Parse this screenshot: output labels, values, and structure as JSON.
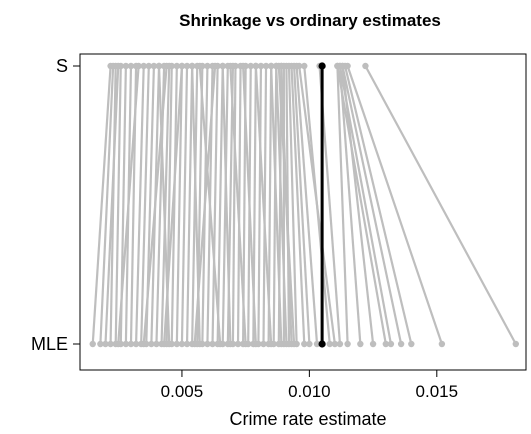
{
  "chart_data": {
    "type": "line",
    "title": "Shrinkage vs ordinary estimates",
    "xlabel": "Crime rate estimate",
    "ylabel": "",
    "y_categories": [
      "S",
      "MLE"
    ],
    "xlim": [
      0.001,
      0.0185
    ],
    "x_ticks": [
      {
        "value": 0.005,
        "label": "0.005"
      },
      {
        "value": 0.01,
        "label": "0.010"
      },
      {
        "value": 0.015,
        "label": "0.015"
      }
    ],
    "grid": false,
    "line_color": "#bebebe",
    "highlight_color": "#000000",
    "highlight": {
      "mle": 0.0105,
      "s": 0.0105
    },
    "background_series": [
      {
        "mle": 0.0015,
        "s": 0.0022
      },
      {
        "mle": 0.0018,
        "s": 0.0023
      },
      {
        "mle": 0.002,
        "s": 0.0025
      },
      {
        "mle": 0.0022,
        "s": 0.0024
      },
      {
        "mle": 0.0024,
        "s": 0.0026
      },
      {
        "mle": 0.0026,
        "s": 0.0028
      },
      {
        "mle": 0.0028,
        "s": 0.003
      },
      {
        "mle": 0.003,
        "s": 0.0032
      },
      {
        "mle": 0.0032,
        "s": 0.0035
      },
      {
        "mle": 0.0034,
        "s": 0.0037
      },
      {
        "mle": 0.0036,
        "s": 0.0039
      },
      {
        "mle": 0.0038,
        "s": 0.0041
      },
      {
        "mle": 0.004,
        "s": 0.0043
      },
      {
        "mle": 0.0042,
        "s": 0.0045
      },
      {
        "mle": 0.0044,
        "s": 0.0046
      },
      {
        "mle": 0.0046,
        "s": 0.0048
      },
      {
        "mle": 0.0048,
        "s": 0.005
      },
      {
        "mle": 0.005,
        "s": 0.0052
      },
      {
        "mle": 0.0052,
        "s": 0.0054
      },
      {
        "mle": 0.0054,
        "s": 0.0056
      },
      {
        "mle": 0.0056,
        "s": 0.0058
      },
      {
        "mle": 0.0058,
        "s": 0.006
      },
      {
        "mle": 0.006,
        "s": 0.0062
      },
      {
        "mle": 0.0062,
        "s": 0.0064
      },
      {
        "mle": 0.0064,
        "s": 0.0066
      },
      {
        "mle": 0.0066,
        "s": 0.0068
      },
      {
        "mle": 0.0068,
        "s": 0.007
      },
      {
        "mle": 0.007,
        "s": 0.0071
      },
      {
        "mle": 0.0072,
        "s": 0.0073
      },
      {
        "mle": 0.0074,
        "s": 0.0075
      },
      {
        "mle": 0.0076,
        "s": 0.0077
      },
      {
        "mle": 0.0078,
        "s": 0.0079
      },
      {
        "mle": 0.008,
        "s": 0.0081
      },
      {
        "mle": 0.0082,
        "s": 0.0083
      },
      {
        "mle": 0.0084,
        "s": 0.0085
      },
      {
        "mle": 0.0086,
        "s": 0.0087
      },
      {
        "mle": 0.0088,
        "s": 0.0089
      },
      {
        "mle": 0.009,
        "s": 0.009
      },
      {
        "mle": 0.0092,
        "s": 0.0091
      },
      {
        "mle": 0.0095,
        "s": 0.0092
      },
      {
        "mle": 0.0098,
        "s": 0.0093
      },
      {
        "mle": 0.01,
        "s": 0.0094
      },
      {
        "mle": 0.0103,
        "s": 0.0095
      },
      {
        "mle": 0.0108,
        "s": 0.0098
      },
      {
        "mle": 0.0112,
        "s": 0.0104
      },
      {
        "mle": 0.0115,
        "s": 0.0111
      },
      {
        "mle": 0.012,
        "s": 0.0112
      },
      {
        "mle": 0.0125,
        "s": 0.0113
      },
      {
        "mle": 0.013,
        "s": 0.0111
      },
      {
        "mle": 0.0132,
        "s": 0.0112
      },
      {
        "mle": 0.0136,
        "s": 0.0113
      },
      {
        "mle": 0.014,
        "s": 0.0114
      },
      {
        "mle": 0.0152,
        "s": 0.0115
      },
      {
        "mle": 0.0181,
        "s": 0.0122
      },
      {
        "mle": 0.011,
        "s": 0.0096
      },
      {
        "mle": 0.0094,
        "s": 0.0088
      },
      {
        "mle": 0.0065,
        "s": 0.0057
      },
      {
        "mle": 0.0055,
        "s": 0.0063
      },
      {
        "mle": 0.0045,
        "s": 0.0041
      },
      {
        "mle": 0.0035,
        "s": 0.0044
      },
      {
        "mle": 0.0025,
        "s": 0.0033
      },
      {
        "mle": 0.0075,
        "s": 0.0069
      },
      {
        "mle": 0.0085,
        "s": 0.0079
      },
      {
        "mle": 0.0089,
        "s": 0.0085
      },
      {
        "mle": 0.0091,
        "s": 0.0087
      },
      {
        "mle": 0.0093,
        "s": 0.0089
      },
      {
        "mle": 0.0043,
        "s": 0.005
      },
      {
        "mle": 0.0057,
        "s": 0.0054
      },
      {
        "mle": 0.0069,
        "s": 0.0066
      },
      {
        "mle": 0.0079,
        "s": 0.0074
      }
    ]
  }
}
